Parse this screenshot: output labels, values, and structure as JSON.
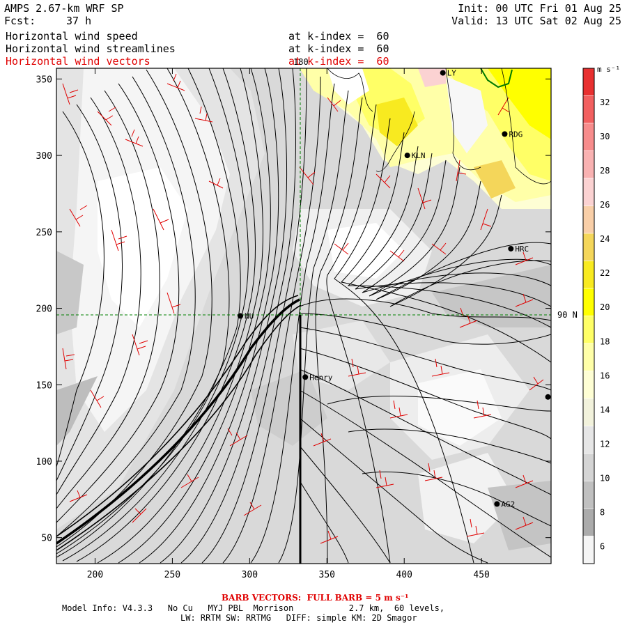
{
  "header": {
    "model": "AMPS 2.67-km WRF SP",
    "fcst_label": "Fcst:",
    "fcst_value": "37 h",
    "init": "Init: 00 UTC Fri 01 Aug 25",
    "valid": "Valid: 13 UTC Sat 02 Aug 25",
    "line1": "Horizontal wind speed",
    "line2": "Horizontal wind streamlines",
    "line3": "Horizontal wind vectors",
    "kindex1": "at k-index =  60",
    "kindex2": "at k-index =  60",
    "kindex3": "at k-index =  60"
  },
  "map": {
    "meridian_label": "180",
    "parallel_label": "90 N",
    "stations": [
      {
        "name": "LY",
        "x": 425,
        "y": 354
      },
      {
        "name": "RDG",
        "x": 465,
        "y": 314
      },
      {
        "name": "KLN",
        "x": 402,
        "y": 300
      },
      {
        "name": "HRC",
        "x": 469,
        "y": 239
      },
      {
        "name": "NU",
        "x": 294,
        "y": 195
      },
      {
        "name": "Henry",
        "x": 336,
        "y": 155
      },
      {
        "name": "",
        "x": 493,
        "y": 142
      },
      {
        "name": "AG2",
        "x": 460,
        "y": 72
      }
    ]
  },
  "colorbar": {
    "unit": "m s⁻¹",
    "labels": [
      "32",
      "30",
      "28",
      "26",
      "24",
      "22",
      "20",
      "18",
      "16",
      "14",
      "12",
      "10",
      "8",
      "6"
    ],
    "colors": [
      "#e83030",
      "#f26060",
      "#f78c8c",
      "#f9b2b2",
      "#fbd2d2",
      "#f9cfa8",
      "#f4d65a",
      "#f8ea20",
      "#ffff00",
      "#ffff66",
      "#ffffa8",
      "#fefed4",
      "#f2f2dc",
      "#e6e6e6",
      "#d4d4d4",
      "#c0c0c0",
      "#ababab",
      "#f5f5f5"
    ]
  },
  "footer": {
    "barb_note": "BARB VECTORS:  FULL BARB = 5 m s⁻¹",
    "model_info_1": "Model Info: V4.3.3   No Cu   MYJ PBL  Morrison           2.7 km,  60 levels,",
    "model_info_2": "LW: RRTM SW: RRTMG   DIFF: simple KM: 2D Smagor"
  },
  "chart_data": {
    "type": "heatmap",
    "title": "Horizontal wind speed, streamlines, vectors at k-index = 60",
    "xlim": [
      175,
      495
    ],
    "ylim": [
      33,
      357
    ],
    "x_ticks": [
      200,
      250,
      300,
      350,
      400,
      450
    ],
    "y_ticks": [
      50,
      100,
      150,
      200,
      250,
      300,
      350
    ],
    "colorbar_range": [
      5,
      34
    ],
    "colorbar_ticks": [
      6,
      8,
      10,
      12,
      14,
      16,
      18,
      20,
      22,
      24,
      26,
      28,
      30,
      32
    ],
    "colorbar_unit": "m s⁻¹"
  }
}
